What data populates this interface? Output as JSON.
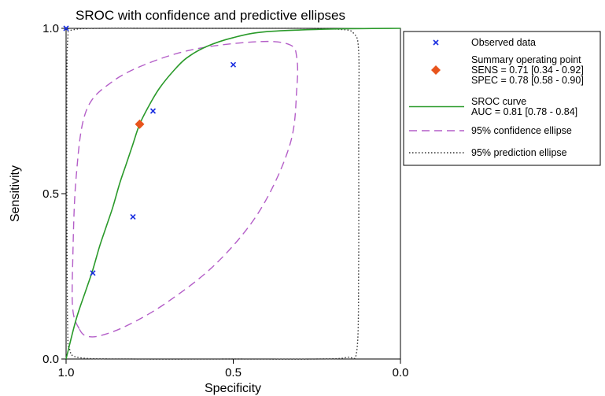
{
  "chart_data": {
    "type": "scatter",
    "title": "SROC with  confidence and predictive ellipses",
    "xlabel": "Specificity",
    "ylabel": "Sensitivity",
    "x_reversed": true,
    "xlim": [
      1.0,
      0.0
    ],
    "ylim": [
      0.0,
      1.0
    ],
    "x_ticks": [
      "1.0",
      "0.5",
      "0.0"
    ],
    "x_tick_values": [
      1.0,
      0.5,
      0.0
    ],
    "y_ticks": [
      "0.0",
      "0.5",
      "1.0"
    ],
    "y_tick_values": [
      0.0,
      0.5,
      1.0
    ],
    "grid": false,
    "legend_position": "top-right",
    "series": [
      {
        "name": "Observed data",
        "kind": "points",
        "marker": "x",
        "color": "#1a2ee0",
        "points": [
          {
            "specificity": 1.0,
            "sensitivity": 1.0
          },
          {
            "specificity": 0.5,
            "sensitivity": 0.89
          },
          {
            "specificity": 0.74,
            "sensitivity": 0.75
          },
          {
            "specificity": 0.8,
            "sensitivity": 0.43
          },
          {
            "specificity": 0.92,
            "sensitivity": 0.26
          }
        ]
      },
      {
        "name": "Summary operating point",
        "kind": "point",
        "marker": "diamond",
        "color": "#e8541c",
        "specificity": 0.78,
        "sensitivity": 0.71
      },
      {
        "name": "SROC curve",
        "kind": "line",
        "color": "#2a9a2a",
        "points": [
          [
            1.0,
            0.0
          ],
          [
            0.97,
            0.12
          ],
          [
            0.94,
            0.21
          ],
          [
            0.92,
            0.27
          ],
          [
            0.9,
            0.34
          ],
          [
            0.88,
            0.4
          ],
          [
            0.86,
            0.46
          ],
          [
            0.84,
            0.53
          ],
          [
            0.82,
            0.59
          ],
          [
            0.8,
            0.65
          ],
          [
            0.78,
            0.71
          ],
          [
            0.75,
            0.77
          ],
          [
            0.72,
            0.82
          ],
          [
            0.68,
            0.87
          ],
          [
            0.64,
            0.91
          ],
          [
            0.58,
            0.945
          ],
          [
            0.5,
            0.972
          ],
          [
            0.4,
            0.99
          ],
          [
            0.2,
            0.998
          ],
          [
            0.0,
            1.0
          ]
        ]
      },
      {
        "name": "95% confidence ellipse",
        "kind": "closed-line",
        "dash": "dashed",
        "color": "#b45ec8",
        "points": [
          [
            0.96,
            0.09
          ],
          [
            0.94,
            0.07
          ],
          [
            0.9,
            0.07
          ],
          [
            0.82,
            0.1
          ],
          [
            0.7,
            0.17
          ],
          [
            0.55,
            0.29
          ],
          [
            0.42,
            0.45
          ],
          [
            0.33,
            0.65
          ],
          [
            0.31,
            0.82
          ],
          [
            0.31,
            0.91
          ],
          [
            0.33,
            0.95
          ],
          [
            0.42,
            0.96
          ],
          [
            0.6,
            0.94
          ],
          [
            0.74,
            0.9
          ],
          [
            0.86,
            0.84
          ],
          [
            0.94,
            0.75
          ],
          [
            0.97,
            0.55
          ],
          [
            0.98,
            0.3
          ],
          [
            0.98,
            0.15
          ]
        ]
      },
      {
        "name": "95% prediction ellipse",
        "kind": "closed-line",
        "dash": "dotted",
        "color": "#333333",
        "points": [
          [
            0.99,
            0.03
          ],
          [
            0.96,
            0.004
          ],
          [
            0.8,
            0.0
          ],
          [
            0.5,
            0.0
          ],
          [
            0.25,
            0.0
          ],
          [
            0.16,
            0.005
          ],
          [
            0.13,
            0.03
          ],
          [
            0.125,
            0.3
          ],
          [
            0.125,
            0.7
          ],
          [
            0.125,
            0.93
          ],
          [
            0.14,
            0.985
          ],
          [
            0.18,
            0.997
          ],
          [
            0.3,
            1.0
          ],
          [
            0.5,
            1.0
          ],
          [
            0.7,
            1.0
          ],
          [
            0.9,
            1.0
          ],
          [
            0.98,
            0.995
          ],
          [
            0.995,
            0.97
          ],
          [
            0.998,
            0.7
          ],
          [
            0.997,
            0.3
          ],
          [
            0.995,
            0.08
          ]
        ]
      }
    ],
    "legend": [
      {
        "key": "observed",
        "lines": [
          "Observed data"
        ]
      },
      {
        "key": "summary",
        "lines": [
          "Summary operating point",
          "SENS = 0.71 [0.34 - 0.92]",
          "SPEC = 0.78 [0.58 - 0.90]"
        ]
      },
      {
        "key": "sroc",
        "lines": [
          "SROC curve",
          "AUC = 0.81 [0.78 - 0.84]"
        ]
      },
      {
        "key": "conf",
        "lines": [
          "95% confidence ellipse"
        ]
      },
      {
        "key": "pred",
        "lines": [
          "95% prediction ellipse"
        ]
      }
    ]
  }
}
